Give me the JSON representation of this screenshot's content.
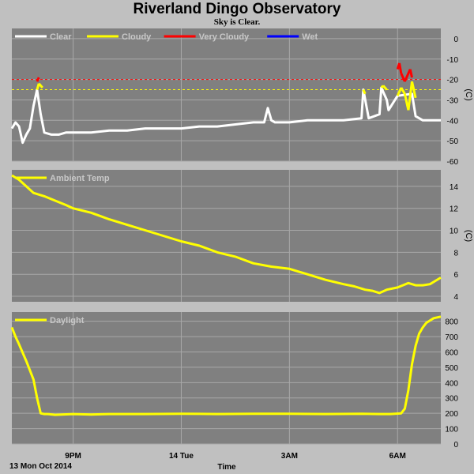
{
  "header": {
    "title": "Riverland Dingo Observatory",
    "subtitle": "Sky is Clear."
  },
  "footer": {
    "date_label": "13 Mon Oct 2014",
    "x_axis_label": "Time"
  },
  "colors": {
    "background": "#c0c0c0",
    "plot_bg": "#808080",
    "grid": "#a8a8a8",
    "clear": "#ffffff",
    "cloudy": "#ffff00",
    "very_cloudy": "#ff0000",
    "wet": "#0000ff"
  },
  "chart_data": [
    {
      "type": "line",
      "ylabel": "(C)",
      "ylim": [
        -60,
        5
      ],
      "yticks": [
        0,
        -10,
        -20,
        -30,
        -40,
        -50,
        -60
      ],
      "xlim": [
        19.3,
        31.2
      ],
      "xlabel": "Time",
      "x_unit": "hours after 00:00 on 13 Oct 2014",
      "xtick_values": [
        21,
        24,
        27,
        30
      ],
      "xtick_labels": [
        "9PM",
        "14 Tue",
        "3AM",
        "6AM"
      ],
      "grid": true,
      "legend_position": "top-left",
      "legend": [
        "Clear",
        "Cloudy",
        "Very Cloudy",
        "Wet"
      ],
      "thresholds": [
        {
          "y": -20,
          "color": "red",
          "style": "dashed"
        },
        {
          "y": -25,
          "color": "yellow",
          "style": "dashed"
        }
      ],
      "series": [
        {
          "name": "Clear",
          "x": [
            19.3,
            19.4,
            19.5,
            19.6,
            19.7,
            19.8,
            19.9,
            20.0,
            20.1,
            20.2,
            20.4,
            20.6,
            20.8,
            21.0,
            21.5,
            22.0,
            22.5,
            23.0,
            23.5,
            24.0,
            24.5,
            25.0,
            25.5,
            26.0,
            26.3,
            26.4,
            26.5,
            26.6,
            27.0,
            27.5,
            28.0,
            28.5,
            29.0,
            29.05,
            29.2,
            29.5,
            29.55,
            29.7,
            29.75,
            30.0,
            30.4,
            30.5,
            30.7,
            31.2
          ],
          "y": [
            -44,
            -41,
            -43,
            -51,
            -47,
            -44,
            -33,
            -25,
            -37,
            -46,
            -47,
            -47,
            -46,
            -46,
            -46,
            -45,
            -45,
            -44,
            -44,
            -44,
            -43,
            -43,
            -42,
            -41,
            -41,
            -34,
            -40,
            -41,
            -41,
            -40,
            -40,
            -40,
            -39,
            -25,
            -39,
            -37,
            -24,
            -30,
            -35,
            -28,
            -27,
            -38,
            -40,
            -40
          ]
        },
        {
          "name": "Cloudy",
          "x": [
            20.0,
            20.05,
            20.15,
            29.05,
            29.1,
            29.55,
            29.6,
            29.7,
            30.0,
            30.1,
            30.2,
            30.3,
            30.4,
            30.5
          ],
          "y": [
            -25,
            -22,
            -24,
            -25,
            -27,
            -24,
            -23,
            -25,
            -28,
            -24,
            -27,
            -35,
            -21,
            -29
          ]
        },
        {
          "name": "Very Cloudy",
          "x": [
            20.0,
            20.05,
            30.0,
            30.05,
            30.1,
            30.2,
            30.35,
            30.4
          ],
          "y": [
            -21,
            -19,
            -15,
            -12,
            -17,
            -21,
            -15,
            -19
          ]
        },
        {
          "name": "Wet",
          "x": [],
          "y": []
        }
      ]
    },
    {
      "type": "line",
      "ylabel": "(C)",
      "ylim": [
        3.5,
        15.5
      ],
      "yticks": [
        4,
        6,
        8,
        10,
        12,
        14
      ],
      "xlim": [
        19.3,
        31.2
      ],
      "xlabel": "Time",
      "grid": true,
      "legend_position": "top-left",
      "legend": [
        "Ambient Temp"
      ],
      "series": [
        {
          "name": "Ambient Temp",
          "x": [
            19.3,
            19.5,
            19.7,
            19.9,
            20.2,
            20.5,
            20.8,
            21.0,
            21.5,
            22.0,
            22.5,
            23.0,
            23.5,
            24.0,
            24.5,
            25.0,
            25.5,
            26.0,
            26.5,
            27.0,
            27.5,
            28.0,
            28.5,
            28.8,
            29.1,
            29.3,
            29.5,
            29.7,
            30.0,
            30.3,
            30.5,
            30.7,
            30.9,
            31.0,
            31.2
          ],
          "y": [
            15.0,
            14.6,
            14.0,
            13.4,
            13.1,
            12.7,
            12.3,
            12.0,
            11.6,
            11.0,
            10.5,
            10.0,
            9.5,
            9.0,
            8.6,
            8.0,
            7.6,
            7.0,
            6.7,
            6.5,
            6.0,
            5.5,
            5.1,
            4.9,
            4.6,
            4.5,
            4.3,
            4.6,
            4.8,
            5.2,
            5.0,
            5.0,
            5.1,
            5.3,
            5.7
          ]
        }
      ]
    },
    {
      "type": "line",
      "ylim": [
        0,
        860
      ],
      "yticks": [
        0,
        100,
        200,
        300,
        400,
        500,
        600,
        700,
        800
      ],
      "xlim": [
        19.3,
        31.2
      ],
      "xlabel": "Time",
      "grid": true,
      "legend_position": "top-left",
      "legend": [
        "Daylight"
      ],
      "series": [
        {
          "name": "Daylight",
          "x": [
            19.3,
            19.4,
            19.5,
            19.7,
            19.9,
            20.0,
            20.1,
            20.2,
            20.3,
            20.5,
            21.0,
            21.5,
            22.0,
            23.0,
            24.0,
            25.0,
            26.0,
            27.0,
            28.0,
            29.0,
            29.5,
            29.8,
            30.1,
            30.2,
            30.3,
            30.4,
            30.5,
            30.6,
            30.7,
            30.8,
            31.0,
            31.2
          ],
          "y": [
            760,
            700,
            650,
            540,
            420,
            300,
            200,
            195,
            195,
            190,
            195,
            192,
            195,
            195,
            197,
            195,
            197,
            197,
            195,
            197,
            195,
            195,
            200,
            230,
            350,
            520,
            640,
            720,
            760,
            790,
            820,
            830
          ]
        }
      ]
    }
  ]
}
